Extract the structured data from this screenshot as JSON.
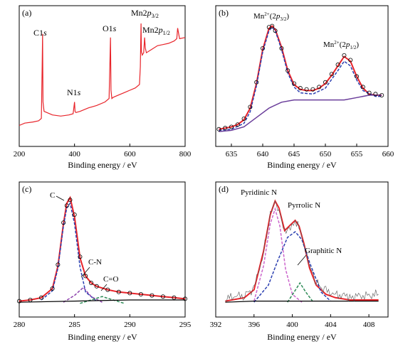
{
  "chart_data": [
    {
      "panel": "(a)",
      "type": "line",
      "xlabel": "Binding energy / eV",
      "ylabel": "",
      "xlim": [
        200,
        800
      ],
      "ylim": [
        0,
        1
      ],
      "xticks": [
        200,
        400,
        600,
        800
      ],
      "grid": false,
      "series": [
        {
          "color": "#e8242a",
          "style": "solid",
          "x": [
            200,
            220,
            250,
            270,
            280,
            283,
            284.5,
            286,
            290,
            300,
            320,
            350,
            380,
            395,
            400,
            402,
            405,
            420,
            450,
            480,
            510,
            525,
            530,
            532,
            535,
            540,
            560,
            580,
            600,
            620,
            635,
            638,
            640.5,
            642,
            645,
            650,
            653.5,
            656,
            660,
            680,
            700,
            720,
            740,
            760,
            770,
            773,
            780,
            800
          ],
          "y": [
            0.1,
            0.12,
            0.13,
            0.14,
            0.16,
            0.6,
            0.88,
            0.3,
            0.22,
            0.21,
            0.19,
            0.18,
            0.19,
            0.2,
            0.3,
            0.22,
            0.21,
            0.22,
            0.25,
            0.27,
            0.3,
            0.33,
            0.85,
            0.4,
            0.33,
            0.34,
            0.36,
            0.38,
            0.4,
            0.42,
            0.45,
            0.6,
            0.97,
            0.73,
            0.7,
            0.72,
            0.85,
            0.76,
            0.72,
            0.75,
            0.78,
            0.79,
            0.8,
            0.82,
            0.84,
            0.93,
            0.84,
            0.85
          ]
        }
      ],
      "annotations": [
        {
          "label": "C1s",
          "x": 284.5
        },
        {
          "label": "N1s",
          "x": 400
        },
        {
          "label": "O1s",
          "x": 530
        },
        {
          "label": "Mn2p3/2",
          "x": 641
        },
        {
          "label": "Mn2p1/2",
          "x": 653
        }
      ]
    },
    {
      "panel": "(b)",
      "type": "line",
      "xlabel": "Binding energy / eV",
      "ylabel": "",
      "xlim": [
        632.5,
        660
      ],
      "ylim": [
        0,
        1
      ],
      "xticks": [
        635,
        640,
        645,
        650,
        655,
        660
      ],
      "grid": false,
      "series": [
        {
          "color": "#e8242a",
          "style": "solid",
          "x": [
            633,
            634,
            635,
            636,
            637,
            638,
            639,
            640,
            641,
            641.5,
            642,
            643,
            644,
            645,
            646,
            647,
            648,
            649,
            650,
            651,
            652,
            653,
            654,
            655,
            656,
            657,
            658,
            659
          ],
          "y": [
            0.08,
            0.09,
            0.1,
            0.12,
            0.16,
            0.26,
            0.47,
            0.76,
            0.94,
            0.96,
            0.93,
            0.78,
            0.58,
            0.46,
            0.42,
            0.41,
            0.41,
            0.43,
            0.47,
            0.54,
            0.62,
            0.7,
            0.66,
            0.53,
            0.43,
            0.38,
            0.37,
            0.37
          ]
        },
        {
          "color": "#2b3fb0",
          "style": "dashed",
          "x": [
            633,
            635,
            637,
            638,
            639,
            640,
            641,
            641.5,
            642,
            643,
            644,
            645,
            646,
            648,
            650,
            652,
            653,
            654,
            655,
            656,
            658,
            659
          ],
          "y": [
            0.07,
            0.08,
            0.13,
            0.23,
            0.45,
            0.74,
            0.92,
            0.95,
            0.92,
            0.76,
            0.56,
            0.44,
            0.39,
            0.38,
            0.43,
            0.58,
            0.66,
            0.62,
            0.5,
            0.41,
            0.36,
            0.36
          ]
        },
        {
          "color": "#6a3d9a",
          "style": "solid",
          "x": [
            633,
            635,
            637,
            639,
            641,
            643,
            645,
            647,
            649,
            651,
            653,
            655,
            657,
            659
          ],
          "y": [
            0.06,
            0.07,
            0.1,
            0.18,
            0.26,
            0.31,
            0.33,
            0.33,
            0.33,
            0.33,
            0.33,
            0.35,
            0.37,
            0.37
          ]
        },
        {
          "color": "#000000",
          "style": "markers",
          "x": [
            633,
            634,
            635,
            636,
            637,
            638,
            639,
            640,
            641,
            641.5,
            642,
            643,
            644,
            645,
            646,
            647,
            648,
            649,
            650,
            651,
            652,
            653,
            654,
            655,
            656,
            657,
            658,
            659
          ],
          "y": [
            0.08,
            0.09,
            0.1,
            0.12,
            0.17,
            0.27,
            0.48,
            0.77,
            0.95,
            0.96,
            0.92,
            0.77,
            0.58,
            0.47,
            0.43,
            0.42,
            0.42,
            0.44,
            0.48,
            0.55,
            0.63,
            0.71,
            0.67,
            0.53,
            0.44,
            0.39,
            0.38,
            0.37
          ]
        }
      ],
      "annotations": [
        {
          "label": "Mn2+(2p3/2)",
          "x": 641.5
        },
        {
          "label": "Mn2+(2p1/2)",
          "x": 653
        }
      ]
    },
    {
      "panel": "(c)",
      "type": "line",
      "xlabel": "Binding energy / eV",
      "ylabel": "",
      "xlim": [
        280,
        295
      ],
      "ylim": [
        0,
        1
      ],
      "xticks": [
        280,
        285,
        290,
        295
      ],
      "grid": false,
      "series": [
        {
          "color": "#e8242a",
          "style": "solid",
          "x": [
            280,
            281,
            282,
            283,
            283.5,
            284,
            284.3,
            284.6,
            285,
            285.5,
            286,
            286.5,
            287,
            288,
            289,
            290,
            291,
            292,
            293,
            294,
            295
          ],
          "y": [
            0.04,
            0.05,
            0.07,
            0.15,
            0.35,
            0.72,
            0.9,
            0.95,
            0.78,
            0.42,
            0.26,
            0.2,
            0.17,
            0.14,
            0.12,
            0.11,
            0.1,
            0.09,
            0.08,
            0.07,
            0.06
          ]
        },
        {
          "color": "#2b3fb0",
          "style": "dashed",
          "x": [
            282,
            283,
            283.5,
            284,
            284.3,
            284.6,
            285,
            285.5,
            286,
            287
          ],
          "y": [
            0.05,
            0.13,
            0.33,
            0.7,
            0.86,
            0.9,
            0.72,
            0.34,
            0.12,
            0.04
          ]
        },
        {
          "color": "#8e44ad",
          "style": "dashed",
          "x": [
            284,
            285,
            285.8,
            286.5,
            287.5
          ],
          "y": [
            0.03,
            0.09,
            0.16,
            0.08,
            0.03
          ]
        },
        {
          "color": "#2e8b57",
          "style": "dashed",
          "x": [
            285.5,
            286.5,
            287.5,
            288.5,
            289.5
          ],
          "y": [
            0.02,
            0.05,
            0.08,
            0.05,
            0.02
          ]
        },
        {
          "color": "#000000",
          "style": "solid",
          "x": [
            280,
            285,
            290,
            295
          ],
          "y": [
            0.03,
            0.04,
            0.05,
            0.05
          ]
        },
        {
          "color": "#000000",
          "style": "markers",
          "x": [
            280,
            281,
            282,
            283,
            283.5,
            284,
            284.3,
            284.6,
            285,
            285.5,
            286,
            286.5,
            287,
            288,
            289,
            290,
            291,
            292,
            293,
            294,
            295
          ],
          "y": [
            0.04,
            0.05,
            0.07,
            0.15,
            0.36,
            0.73,
            0.88,
            0.93,
            0.8,
            0.43,
            0.26,
            0.2,
            0.17,
            0.14,
            0.12,
            0.11,
            0.1,
            0.09,
            0.08,
            0.07,
            0.06
          ]
        }
      ],
      "annotations": [
        {
          "label": "C",
          "x": 284.5
        },
        {
          "label": "C-N",
          "x": 285.8
        },
        {
          "label": "C=O",
          "x": 287.5
        }
      ]
    },
    {
      "panel": "(d)",
      "type": "line",
      "xlabel": "Binding energy / eV",
      "ylabel": "",
      "xlim": [
        392,
        410
      ],
      "ylim": [
        0,
        1
      ],
      "xticks": [
        392,
        396,
        400,
        404,
        408
      ],
      "grid": false,
      "series": [
        {
          "color": "#e8242a",
          "style": "solid",
          "x": [
            393,
            395,
            396,
            397,
            397.7,
            398.2,
            398.6,
            399.2,
            399.8,
            400.3,
            400.7,
            401.2,
            401.8,
            402.5,
            403.5,
            404.5,
            406,
            408,
            409
          ],
          "y": [
            0.04,
            0.07,
            0.14,
            0.48,
            0.8,
            0.92,
            0.86,
            0.66,
            0.71,
            0.75,
            0.7,
            0.55,
            0.33,
            0.18,
            0.1,
            0.07,
            0.05,
            0.05,
            0.05
          ]
        },
        {
          "color": "#cc66cc",
          "style": "dashed",
          "x": [
            396,
            397,
            397.7,
            398.2,
            398.7,
            399.3,
            400,
            401
          ],
          "y": [
            0.04,
            0.35,
            0.72,
            0.85,
            0.7,
            0.32,
            0.1,
            0.03
          ]
        },
        {
          "color": "#2b3fb0",
          "style": "dashed",
          "x": [
            396,
            397.5,
            398.5,
            399.5,
            400.3,
            401,
            401.8,
            403,
            404
          ],
          "y": [
            0.03,
            0.18,
            0.4,
            0.6,
            0.65,
            0.58,
            0.38,
            0.12,
            0.04
          ]
        },
        {
          "color": "#2e8b57",
          "style": "dashed",
          "x": [
            399.5,
            400.2,
            400.8,
            401.4,
            402.2
          ],
          "y": [
            0.03,
            0.12,
            0.2,
            0.12,
            0.03
          ]
        },
        {
          "color": "#000000",
          "style": "solid",
          "x": [
            393,
            396,
            400,
            404,
            409
          ],
          "y": [
            0.03,
            0.04,
            0.04,
            0.04,
            0.04
          ]
        },
        {
          "color": "#555555",
          "style": "noisy",
          "x": [
            393,
            394,
            395,
            396,
            397,
            397.7,
            398.2,
            398.6,
            399.2,
            399.8,
            400.3,
            400.7,
            401.2,
            401.8,
            402.5,
            403.5,
            404.5,
            406,
            408,
            409
          ],
          "y": [
            0.06,
            0.08,
            0.09,
            0.15,
            0.47,
            0.8,
            0.9,
            0.85,
            0.66,
            0.7,
            0.75,
            0.7,
            0.55,
            0.34,
            0.2,
            0.13,
            0.1,
            0.08,
            0.09,
            0.1
          ]
        }
      ],
      "annotations": [
        {
          "label": "Pyridinic N",
          "x": 398.2
        },
        {
          "label": "Pyrrolic N",
          "x": 400.3
        },
        {
          "label": "Graphitic N",
          "x": 400.9
        }
      ]
    }
  ]
}
